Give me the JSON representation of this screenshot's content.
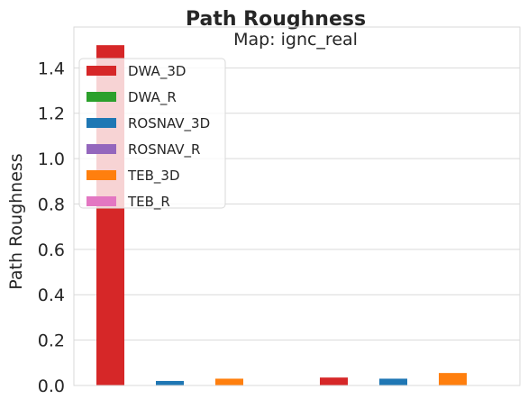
{
  "chart_data": {
    "type": "bar",
    "title": "Path Roughness",
    "subtitle": "Map: ignc_real",
    "xlabel": "",
    "ylabel": "Path Roughness",
    "ylim": [
      0,
      1.58
    ],
    "yticks": [
      0.0,
      0.2,
      0.4,
      0.6,
      0.8,
      1.0,
      1.2,
      1.4
    ],
    "ytick_labels": [
      "0.0",
      "0.2",
      "0.4",
      "0.6",
      "0.8",
      "1.0",
      "1.2",
      "1.4"
    ],
    "grid": true,
    "legend_position": "top-left",
    "series": [
      {
        "name": "DWA_3D",
        "color": "#d62728",
        "value": 1.5,
        "group": 0
      },
      {
        "name": "DWA_R",
        "color": "#2ca02c",
        "value": 0.0,
        "group": 0
      },
      {
        "name": "ROSNAV_3D",
        "color": "#1f77b4",
        "value": 0.02,
        "group": 0
      },
      {
        "name": "ROSNAV_R",
        "color": "#9467bd",
        "value": 0.0,
        "group": 0
      },
      {
        "name": "TEB_3D",
        "color": "#ff7f0e",
        "value": 0.03,
        "group": 0
      },
      {
        "name": "TEB_R",
        "color": "#e377c2",
        "value": 0.0,
        "group": 0
      },
      {
        "name": "DWA_3D",
        "color": "#d62728",
        "value": 0.035,
        "group": 1
      },
      {
        "name": "ROSNAV_3D",
        "color": "#1f77b4",
        "value": 0.03,
        "group": 1
      },
      {
        "name": "TEB_3D",
        "color": "#ff7f0e",
        "value": 0.055,
        "group": 1
      }
    ],
    "legend": [
      {
        "name": "DWA_3D",
        "color": "#d62728"
      },
      {
        "name": "DWA_R",
        "color": "#2ca02c"
      },
      {
        "name": "ROSNAV_3D",
        "color": "#1f77b4"
      },
      {
        "name": "ROSNAV_R",
        "color": "#9467bd"
      },
      {
        "name": "TEB_3D",
        "color": "#ff7f0e"
      },
      {
        "name": "TEB_R",
        "color": "#e377c2"
      }
    ]
  }
}
